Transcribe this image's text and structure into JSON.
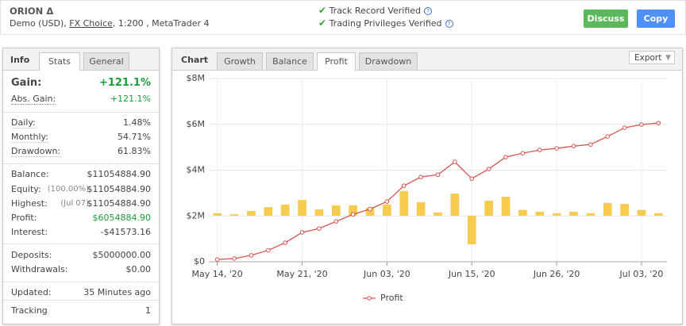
{
  "header": {
    "title": "ORION Δ",
    "account": [
      "Demo (USD),",
      "FX Choice",
      ", 1:200 , MetaTrader 4"
    ],
    "verified": [
      "Track Record Verified",
      "Trading Privileges Verified"
    ],
    "buttons": [
      "Discuss",
      "Copy"
    ]
  },
  "info": {
    "tabs": [
      "Info",
      "Stats",
      "General"
    ],
    "rows": [
      {
        "label": "Gain:",
        "value": "+121.1%"
      },
      {
        "label": "Abs. Gain:",
        "value": "+121.1%"
      },
      {
        "label": "Daily:",
        "value": "1.48%"
      },
      {
        "label": "Monthly:",
        "value": "54.71%"
      },
      {
        "label": "Drawdown:",
        "value": "61.83%"
      },
      {
        "label": "Balance:",
        "value": "$11054884.90"
      },
      {
        "label": "Equity:",
        "note": "(100.00%)",
        "value": "$11054884.90"
      },
      {
        "label": "Highest:",
        "note": "(Jul 07)",
        "value": "$11054884.90"
      },
      {
        "label": "Profit:",
        "value": "$6054884.90"
      },
      {
        "label": "Interest:",
        "value": "-$41573.16"
      },
      {
        "label": "Deposits:",
        "value": "$5000000.00"
      },
      {
        "label": "Withdrawals:",
        "value": "$0.00"
      },
      {
        "label": "Updated:",
        "value": "35 Minutes ago"
      },
      {
        "label": "Tracking",
        "value": "1"
      }
    ]
  },
  "chart_panel": {
    "tabs": [
      "Chart",
      "Growth",
      "Balance",
      "Profit",
      "Drawdown"
    ],
    "export": "Export"
  },
  "chart_data": {
    "type": "line",
    "categories": [
      "May 14, '20",
      null,
      null,
      null,
      null,
      "May 21, '20",
      null,
      null,
      null,
      null,
      "Jun 03, '20",
      null,
      null,
      null,
      null,
      "Jun 15, '20",
      null,
      null,
      null,
      null,
      "Jun 26, '20",
      null,
      null,
      null,
      null,
      "Jul 03, '20",
      null
    ],
    "series": [
      {
        "name": "Profit",
        "color": "#d9534f",
        "values": [
          100000,
          140000,
          280000,
          500000,
          830000,
          1280000,
          1450000,
          1760000,
          2070000,
          2300000,
          2630000,
          3320000,
          3700000,
          3800000,
          4360000,
          3630000,
          4050000,
          4570000,
          4740000,
          4880000,
          4950000,
          5050000,
          5120000,
          5470000,
          5850000,
          5990000,
          6054884.9
        ]
      },
      {
        "kind": "bar",
        "axis": "y2",
        "color": "#f7cb4d",
        "values": [
          70000,
          40000,
          130000,
          240000,
          310000,
          440000,
          180000,
          290000,
          290000,
          220000,
          310000,
          690000,
          380000,
          90000,
          620000,
          -800000,
          420000,
          530000,
          160000,
          110000,
          70000,
          110000,
          70000,
          360000,
          330000,
          160000,
          70000
        ]
      }
    ],
    "ylim": [
      0,
      8000000
    ],
    "yticks": [
      {
        "value": 0,
        "label": "$0"
      },
      {
        "value": 2000000,
        "label": "$2M"
      },
      {
        "value": 4000000,
        "label": "$4M"
      },
      {
        "value": 6000000,
        "label": "$6M"
      },
      {
        "value": 8000000,
        "label": "$8M"
      }
    ],
    "y2lim": [
      -1290000,
      3840000
    ],
    "grid": true,
    "legend": "bottom"
  }
}
